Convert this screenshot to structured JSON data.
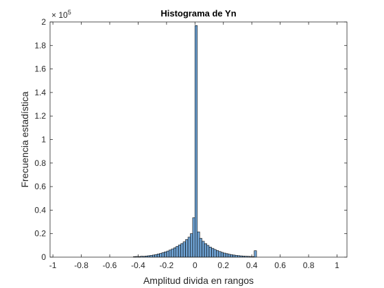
{
  "chart_data": {
    "type": "bar",
    "title": "Histograma de Yn",
    "xlabel": "Amplitud divida en rangos",
    "ylabel": "Frecuencia estadística",
    "y_exponent": {
      "base": "× 10",
      "power": "5"
    },
    "xlim": [
      -1.02,
      1.07
    ],
    "ylim": [
      0,
      200000
    ],
    "x_ticks": [
      "-1",
      "-0.8",
      "-0.6",
      "-0.4",
      "-0.2",
      "0",
      "0.2",
      "0.4",
      "0.6",
      "0.8",
      "1"
    ],
    "y_ticks": [
      "0",
      "0.2",
      "0.4",
      "0.6",
      "0.8",
      "1",
      "1.2",
      "1.4",
      "1.6",
      "1.8",
      "2"
    ],
    "grid": false,
    "bin_width": 0.0167,
    "bins": [
      {
        "x": -0.425,
        "value": 500
      },
      {
        "x": -0.408,
        "value": 600
      },
      {
        "x": -0.391,
        "value": 500
      },
      {
        "x": -0.375,
        "value": 800
      },
      {
        "x": -0.358,
        "value": 700
      },
      {
        "x": -0.341,
        "value": 1000
      },
      {
        "x": -0.325,
        "value": 1200
      },
      {
        "x": -0.308,
        "value": 1500
      },
      {
        "x": -0.291,
        "value": 1800
      },
      {
        "x": -0.275,
        "value": 2200
      },
      {
        "x": -0.258,
        "value": 2700
      },
      {
        "x": -0.241,
        "value": 3200
      },
      {
        "x": -0.225,
        "value": 3800
      },
      {
        "x": -0.208,
        "value": 4500
      },
      {
        "x": -0.191,
        "value": 5200
      },
      {
        "x": -0.175,
        "value": 6000
      },
      {
        "x": -0.158,
        "value": 7000
      },
      {
        "x": -0.141,
        "value": 8000
      },
      {
        "x": -0.125,
        "value": 9200
      },
      {
        "x": -0.108,
        "value": 10400
      },
      {
        "x": -0.091,
        "value": 11600
      },
      {
        "x": -0.075,
        "value": 13000
      },
      {
        "x": -0.058,
        "value": 15000
      },
      {
        "x": -0.041,
        "value": 17000
      },
      {
        "x": -0.025,
        "value": 20000
      },
      {
        "x": -0.008,
        "value": 33500
      },
      {
        "x": 0.008,
        "value": 197000
      },
      {
        "x": 0.025,
        "value": 21500
      },
      {
        "x": 0.041,
        "value": 16000
      },
      {
        "x": 0.058,
        "value": 13500
      },
      {
        "x": 0.075,
        "value": 11500
      },
      {
        "x": 0.091,
        "value": 10000
      },
      {
        "x": 0.108,
        "value": 8600
      },
      {
        "x": 0.125,
        "value": 7500
      },
      {
        "x": 0.141,
        "value": 6500
      },
      {
        "x": 0.158,
        "value": 5600
      },
      {
        "x": 0.175,
        "value": 4800
      },
      {
        "x": 0.191,
        "value": 4100
      },
      {
        "x": 0.208,
        "value": 3500
      },
      {
        "x": 0.225,
        "value": 3000
      },
      {
        "x": 0.241,
        "value": 2500
      },
      {
        "x": 0.258,
        "value": 2100
      },
      {
        "x": 0.275,
        "value": 1800
      },
      {
        "x": 0.291,
        "value": 1500
      },
      {
        "x": 0.308,
        "value": 1300
      },
      {
        "x": 0.325,
        "value": 1100
      },
      {
        "x": 0.341,
        "value": 900
      },
      {
        "x": 0.358,
        "value": 800
      },
      {
        "x": 0.375,
        "value": 700
      },
      {
        "x": 0.391,
        "value": 600
      },
      {
        "x": 0.408,
        "value": 500
      },
      {
        "x": 0.425,
        "value": 5500
      }
    ],
    "bar_color": "#6fa3d4",
    "bar_edge_color": "#000000",
    "axis_color": "#262626"
  }
}
